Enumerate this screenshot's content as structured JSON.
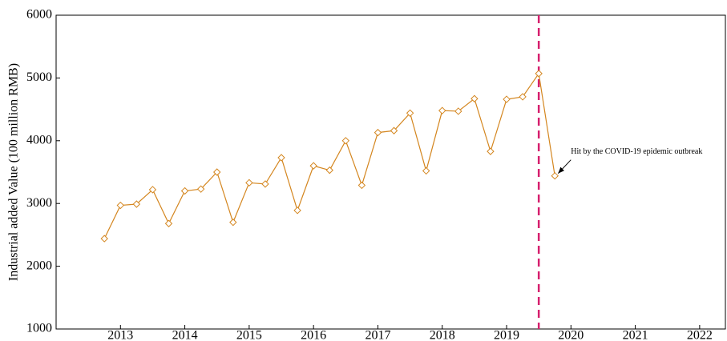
{
  "chart_data": {
    "type": "line",
    "y_label": "Industrial added Value (100 million RMB)",
    "annotation": "Hit by the COVID-19 epidemic outbreak",
    "x": [
      2012.75,
      2013,
      2013.25,
      2013.5,
      2013.75,
      2014,
      2014.25,
      2014.5,
      2014.75,
      2015,
      2015.25,
      2015.5,
      2015.75,
      2016,
      2016.25,
      2016.5,
      2016.75,
      2017,
      2017.25,
      2017.5,
      2017.75,
      2018,
      2018.25,
      2018.5,
      2018.75,
      2019,
      2019.25,
      2019.5,
      2019.75
    ],
    "series": [
      {
        "name": "Industrial added Value",
        "color": "#d4861f",
        "values": [
          2440,
          2970,
          2990,
          3220,
          2680,
          3200,
          3230,
          3500,
          2700,
          3330,
          3310,
          3730,
          2890,
          3600,
          3530,
          4000,
          3290,
          4130,
          4160,
          4440,
          3520,
          4480,
          4470,
          4670,
          3830,
          4660,
          4700,
          5070,
          3440
        ]
      }
    ],
    "xlim": [
      2012,
      2022.4
    ],
    "xticks": [
      2013,
      2014,
      2015,
      2016,
      2017,
      2018,
      2019,
      2020,
      2021,
      2022
    ],
    "ylim": [
      1000,
      6000
    ],
    "yticks": [
      1000,
      2000,
      3000,
      4000,
      5000,
      6000
    ],
    "vline": 2019.5,
    "vline_color": "#d6206e"
  }
}
